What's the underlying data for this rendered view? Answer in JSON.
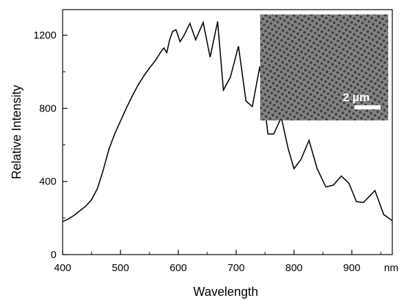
{
  "chart_data": {
    "type": "line",
    "title": "",
    "xlabel": "Wavelength",
    "ylabel": "Relative Intensity",
    "x_unit": "nm",
    "xlim": [
      400,
      970
    ],
    "ylim": [
      0,
      1340
    ],
    "x_ticks": [
      400,
      500,
      600,
      700,
      800,
      900
    ],
    "y_ticks": [
      0,
      400,
      800,
      1200
    ],
    "grid": false,
    "legend": "none",
    "series": [
      {
        "color": "#000000",
        "x": [
          400,
          410,
          420,
          430,
          440,
          450,
          460,
          470,
          480,
          490,
          500,
          510,
          520,
          530,
          540,
          550,
          560,
          570,
          575,
          580,
          585,
          590,
          596,
          603,
          610,
          620,
          630,
          643,
          655,
          668,
          678,
          690,
          704,
          717,
          728,
          741,
          755,
          765,
          778,
          790,
          800,
          812,
          826,
          840,
          855,
          868,
          882,
          895,
          908,
          920,
          940,
          955,
          970
        ],
        "values": [
          180,
          195,
          215,
          240,
          265,
          300,
          360,
          460,
          575,
          660,
          730,
          800,
          865,
          925,
          975,
          1020,
          1060,
          1110,
          1130,
          1105,
          1175,
          1220,
          1230,
          1165,
          1200,
          1265,
          1175,
          1270,
          1080,
          1275,
          900,
          970,
          1140,
          840,
          810,
          1030,
          660,
          660,
          750,
          580,
          470,
          520,
          625,
          470,
          370,
          380,
          430,
          390,
          290,
          285,
          350,
          220,
          185
        ]
      }
    ],
    "inset": {
      "description_label": "2 µm"
    }
  }
}
